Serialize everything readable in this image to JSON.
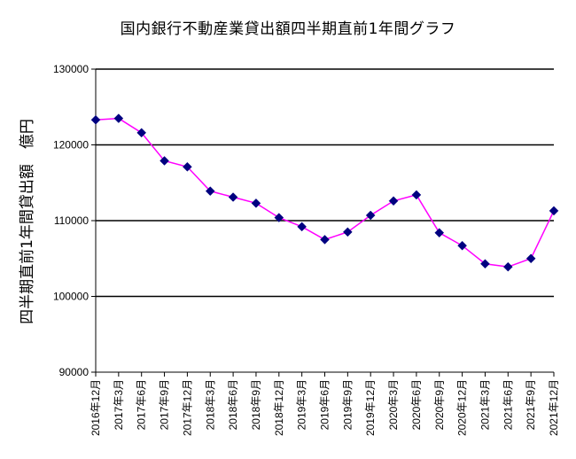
{
  "chart_data": {
    "type": "line",
    "title": "国内銀行不動産業貸出額四半期直前1年間グラフ",
    "xlabel": "",
    "ylabel": "四半期直前1年間貸出額　億円",
    "ylim": [
      90000,
      130000
    ],
    "yticks": [
      90000,
      100000,
      110000,
      120000,
      130000
    ],
    "grid": true,
    "categories": [
      "2016年12月",
      "2017年3月",
      "2017年6月",
      "2017年9月",
      "2017年12月",
      "2018年3月",
      "2018年6月",
      "2018年9月",
      "2018年12月",
      "2019年3月",
      "2019年6月",
      "2019年9月",
      "2019年12月",
      "2020年3月",
      "2020年6月",
      "2020年9月",
      "2020年12月",
      "2021年3月",
      "2021年6月",
      "2021年9月",
      "2021年12月"
    ],
    "series": [
      {
        "values": [
          123300,
          123500,
          121600,
          117900,
          117100,
          113900,
          113100,
          112300,
          110400,
          109200,
          107500,
          108500,
          110700,
          112600,
          113400,
          108400,
          106700,
          104300,
          103900,
          105000,
          111300
        ],
        "line_color": "#ff00ff",
        "marker_color": "#000080"
      }
    ]
  }
}
